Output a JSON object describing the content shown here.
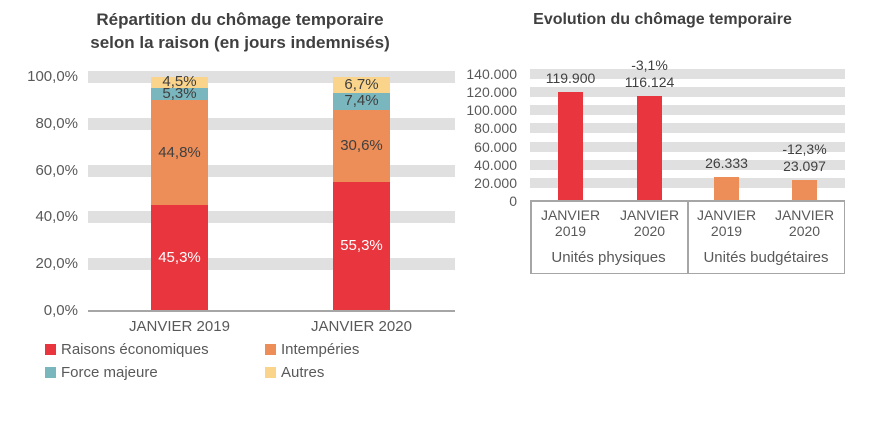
{
  "chart_data": [
    {
      "type": "bar",
      "subtype": "stacked-100-percent",
      "title": "Répartition du chômage temporaire selon la raison (en jours indemnisés)",
      "title_lines": [
        "Répartition du chômage temporaire",
        "selon la raison (en jours indemnisés)"
      ],
      "categories": [
        "JANVIER 2019",
        "JANVIER 2020"
      ],
      "series": [
        {
          "name": "Raisons économiques",
          "color": "#e8353e",
          "values": [
            45.3,
            55.3
          ],
          "labels": [
            "45,3%",
            "55,3%"
          ],
          "label_color": "#ffffff"
        },
        {
          "name": "Intempéries",
          "color": "#ed8d57",
          "values": [
            44.8,
            30.6
          ],
          "labels": [
            "44,8%",
            "30,6%"
          ],
          "label_color": "#404040"
        },
        {
          "name": "Force majeure",
          "color": "#7ab6bd",
          "values": [
            5.3,
            7.4
          ],
          "labels": [
            "5,3%",
            "7,4%"
          ],
          "label_color": "#404040"
        },
        {
          "name": "Autres",
          "color": "#fbd48c",
          "values": [
            4.5,
            6.7
          ],
          "labels": [
            "4,5%",
            "6,7%"
          ],
          "label_color": "#404040"
        }
      ],
      "y_ticks": [
        {
          "value": 100,
          "label": "100,0%"
        },
        {
          "value": 80,
          "label": "80,0%"
        },
        {
          "value": 60,
          "label": "60,0%"
        },
        {
          "value": 40,
          "label": "40,0%"
        },
        {
          "value": 20,
          "label": "20,0%"
        },
        {
          "value": 0,
          "label": "0,0%"
        }
      ],
      "ylim": [
        0,
        100
      ],
      "grid": "horizontal-bands",
      "legend_position": "bottom"
    },
    {
      "type": "bar",
      "subtype": "grouped-two-level-axis",
      "title": "Evolution du chômage temporaire",
      "groups": [
        {
          "label": "Unités physiques",
          "color": "#e8353e",
          "bars": [
            {
              "category_lines": [
                "JANVIER",
                "2019"
              ],
              "value": 119900,
              "value_label": "119.900",
              "change_label": ""
            },
            {
              "category_lines": [
                "JANVIER",
                "2020"
              ],
              "value": 116124,
              "value_label": "116.124",
              "change_label": "-3,1%"
            }
          ]
        },
        {
          "label": "Unités budgétaires",
          "color": "#ed8d57",
          "bars": [
            {
              "category_lines": [
                "JANVIER",
                "2019"
              ],
              "value": 26333,
              "value_label": "26.333",
              "change_label": ""
            },
            {
              "category_lines": [
                "JANVIER",
                "2020"
              ],
              "value": 23097,
              "value_label": "23.097",
              "change_label": "-12,3%"
            }
          ]
        }
      ],
      "y_ticks": [
        {
          "value": 140000,
          "label": "140.000"
        },
        {
          "value": 120000,
          "label": "120.000"
        },
        {
          "value": 100000,
          "label": "100.000"
        },
        {
          "value": 80000,
          "label": "80.000"
        },
        {
          "value": 60000,
          "label": "60.000"
        },
        {
          "value": 40000,
          "label": "40.000"
        },
        {
          "value": 20000,
          "label": "20.000"
        },
        {
          "value": 0,
          "label": "0"
        }
      ],
      "ylim": [
        0,
        140000
      ],
      "grid": "horizontal-bands"
    }
  ],
  "colors": {
    "grid_band": "#e0e0e0",
    "axis_line": "#a6a6a6",
    "title_text": "#404040",
    "axis_text": "#595959"
  }
}
